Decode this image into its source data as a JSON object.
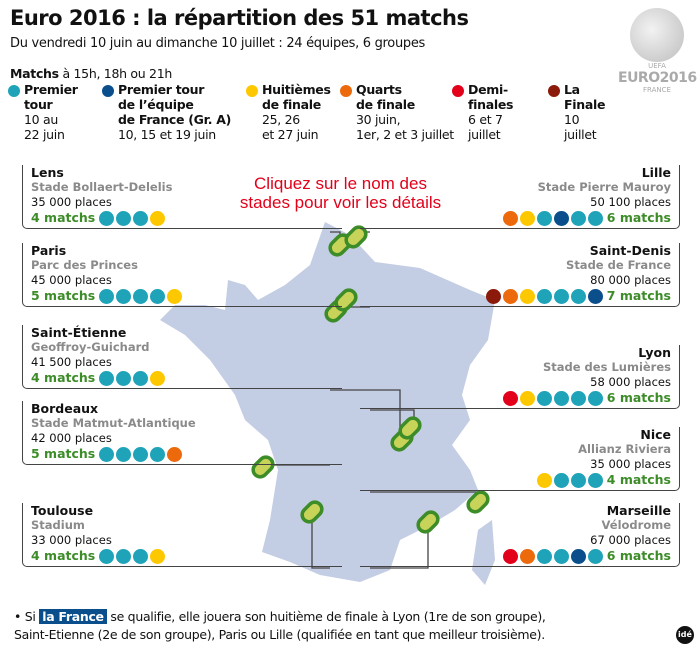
{
  "title": "Euro 2016 : la répartition des 51 matchs",
  "subtitle": "Du vendredi 10 juin au dimanche 10 juillet : 24 équipes, 6 groupes",
  "times": {
    "bold": "Matchs",
    "rest": " à 15h, 18h ou 21h"
  },
  "colors": {
    "premier": "#1fa3b9",
    "france": "#0a4f8c",
    "huitiemes": "#fdc800",
    "quarts": "#ec6a0c",
    "demi": "#e3001b",
    "finale": "#8b1a0a",
    "stadium": "#3c8c28",
    "map": "#c3cde4"
  },
  "legend": [
    {
      "key": "premier",
      "h1": "Premier",
      "h2": "tour",
      "d1": "10 au",
      "d2": "22 juin"
    },
    {
      "key": "france",
      "h1": "Premier tour",
      "h2": "de l’équipe",
      "h3": "de France (Gr. A)",
      "d1": "10, 15 et 19 juin"
    },
    {
      "key": "huitiemes",
      "h1": "Huitièmes",
      "h2": "de finale",
      "d1": "25, 26",
      "d2": "et 27 juin"
    },
    {
      "key": "quarts",
      "h1": "Quarts",
      "h2": "de finale",
      "d1": "30 juin,",
      "d2": "1er, 2 et 3 juillet"
    },
    {
      "key": "demi",
      "h1": "Demi-",
      "h2": "finales",
      "d1": "6 et 7",
      "d2": "juillet"
    },
    {
      "key": "finale",
      "h1": "La",
      "h2": "Finale",
      "d1": "10",
      "d2": "juillet"
    }
  ],
  "logo": {
    "uefa": "UEFA",
    "euro": "EURO2016",
    "country": "FRANCE"
  },
  "click_hint": "Cliquez sur le nom des stades pour voir les détails",
  "stadiums": [
    {
      "city": "Lens",
      "stadium": "Stade Bollaert-Delelis",
      "places": "35 000 places",
      "matchs": "4 matchs",
      "dots": [
        "premier",
        "premier",
        "premier",
        "huitiemes"
      ]
    },
    {
      "city": "Paris",
      "stadium": "Parc des Princes",
      "places": "45 000 places",
      "matchs": "5 matchs",
      "dots": [
        "premier",
        "premier",
        "premier",
        "premier",
        "huitiemes"
      ]
    },
    {
      "city": "Saint-Étienne",
      "stadium": "Geoffroy-Guichard",
      "places": "41 500 places",
      "matchs": "4 matchs",
      "dots": [
        "premier",
        "premier",
        "premier",
        "huitiemes"
      ]
    },
    {
      "city": "Bordeaux",
      "stadium": "Stade Matmut-Atlantique",
      "places": "42 000 places",
      "matchs": "5 matchs",
      "dots": [
        "premier",
        "premier",
        "premier",
        "premier",
        "quarts"
      ]
    },
    {
      "city": "Toulouse",
      "stadium": "Stadium",
      "places": "33 000 places",
      "matchs": "4 matchs",
      "dots": [
        "premier",
        "premier",
        "premier",
        "huitiemes"
      ]
    },
    {
      "city": "Lille",
      "stadium": "Stade Pierre Mauroy",
      "places": "50 100 places",
      "matchs": "6 matchs",
      "dots": [
        "quarts",
        "huitiemes",
        "premier",
        "france",
        "premier",
        "premier"
      ]
    },
    {
      "city": "Saint-Denis",
      "stadium": "Stade de France",
      "places": "80 000 places",
      "matchs": "7 matchs",
      "dots": [
        "finale",
        "quarts",
        "huitiemes",
        "premier",
        "premier",
        "premier",
        "france"
      ]
    },
    {
      "city": "Lyon",
      "stadium": "Stade des Lumières",
      "places": "58 000 places",
      "matchs": "6 matchs",
      "dots": [
        "demi",
        "huitiemes",
        "premier",
        "premier",
        "premier",
        "premier"
      ]
    },
    {
      "city": "Nice",
      "stadium": "Allianz Riviera",
      "places": "35 000 places",
      "matchs": "4 matchs",
      "dots": [
        "huitiemes",
        "premier",
        "premier",
        "premier"
      ]
    },
    {
      "city": "Marseille",
      "stadium": "Vélodrome",
      "places": "67 000 places",
      "matchs": "6 matchs",
      "dots": [
        "demi",
        "quarts",
        "premier",
        "premier",
        "france",
        "premier"
      ]
    }
  ],
  "footnote": {
    "bullet": "• Si ",
    "highlight": "la France",
    "line1": " se qualifie, elle jouera son huitième de finale à Lyon (1re de son groupe),",
    "line2": "Saint-Etienne (2e de son groupe), Paris ou Lille (qualifiée en tant que meilleur troisième)."
  },
  "credit": "idé"
}
